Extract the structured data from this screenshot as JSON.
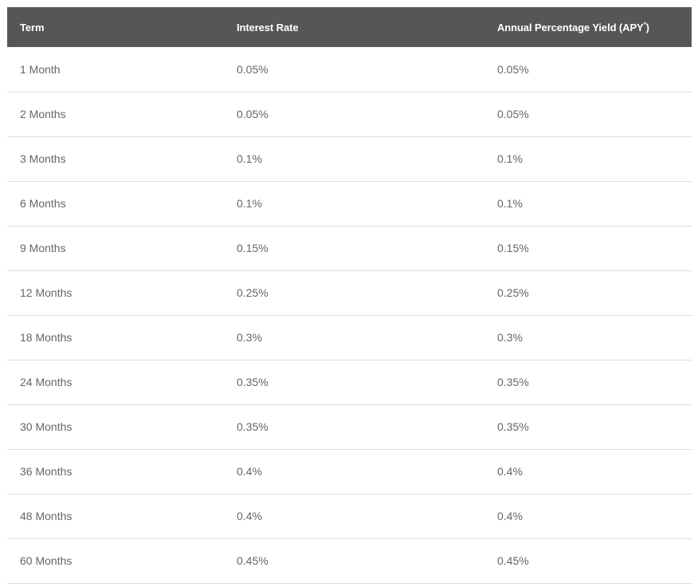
{
  "table": {
    "headers": {
      "term": "Term",
      "interest_rate": "Interest Rate",
      "apy_prefix": "Annual Percentage Yield (APY",
      "apy_sup": "*",
      "apy_suffix": ")"
    },
    "rows": [
      {
        "term": "1 Month",
        "interest_rate": "0.05%",
        "apy": "0.05%"
      },
      {
        "term": "2 Months",
        "interest_rate": "0.05%",
        "apy": "0.05%"
      },
      {
        "term": "3 Months",
        "interest_rate": "0.1%",
        "apy": "0.1%"
      },
      {
        "term": "6 Months",
        "interest_rate": "0.1%",
        "apy": "0.1%"
      },
      {
        "term": "9 Months",
        "interest_rate": "0.15%",
        "apy": "0.15%"
      },
      {
        "term": "12 Months",
        "interest_rate": "0.25%",
        "apy": "0.25%"
      },
      {
        "term": "18 Months",
        "interest_rate": "0.3%",
        "apy": "0.3%"
      },
      {
        "term": "24 Months",
        "interest_rate": "0.35%",
        "apy": "0.35%"
      },
      {
        "term": "30 Months",
        "interest_rate": "0.35%",
        "apy": "0.35%"
      },
      {
        "term": "36 Months",
        "interest_rate": "0.4%",
        "apy": "0.4%"
      },
      {
        "term": "48 Months",
        "interest_rate": "0.4%",
        "apy": "0.4%"
      },
      {
        "term": "60 Months",
        "interest_rate": "0.45%",
        "apy": "0.45%"
      }
    ]
  },
  "colors": {
    "header_bg": "#565656",
    "header_text": "#ffffff",
    "cell_text": "#666666",
    "row_divider": "#dcdcdc"
  }
}
